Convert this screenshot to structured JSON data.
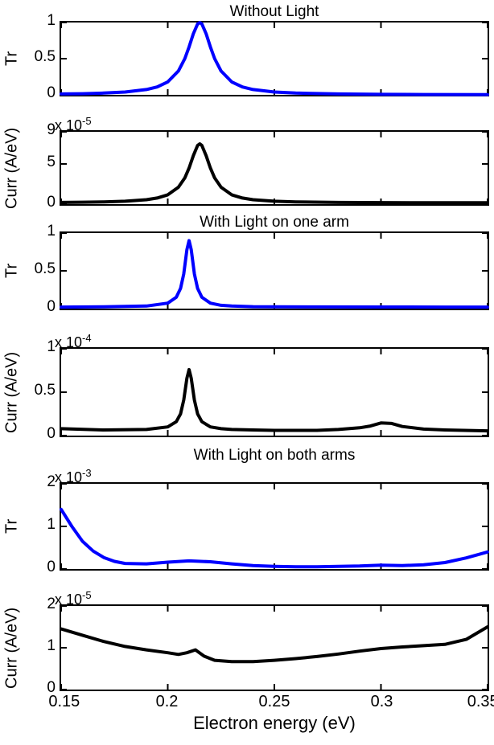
{
  "figure": {
    "xlabel": "Electron energy (eV)",
    "x_range": [
      0.15,
      0.35
    ],
    "x_ticks": [
      0.15,
      0.2,
      0.25,
      0.3,
      0.35
    ],
    "x_tick_labels": [
      "0.15",
      "0.2",
      "0.25",
      "0.3",
      "0.35"
    ],
    "line_color_tr": "#0000ff",
    "line_color_curr": "#000000"
  },
  "chart_data": [
    {
      "type": "line",
      "title": "Without Light",
      "ylabel": "Tr",
      "color": "#0000ff",
      "ylim": [
        0,
        1
      ],
      "ytick_values": [
        0,
        0.5,
        1
      ],
      "ytick_labels": [
        "0",
        "0.5",
        "1"
      ],
      "x": [
        0.15,
        0.16,
        0.17,
        0.18,
        0.19,
        0.195,
        0.2,
        0.205,
        0.208,
        0.21,
        0.212,
        0.214,
        0.215,
        0.216,
        0.218,
        0.22,
        0.222,
        0.225,
        0.23,
        0.235,
        0.24,
        0.25,
        0.26,
        0.28,
        0.3,
        0.32,
        0.35
      ],
      "y": [
        0.012,
        0.016,
        0.024,
        0.039,
        0.073,
        0.109,
        0.179,
        0.329,
        0.5,
        0.662,
        0.845,
        0.98,
        1.0,
        0.98,
        0.845,
        0.662,
        0.5,
        0.329,
        0.179,
        0.109,
        0.073,
        0.039,
        0.024,
        0.012,
        0.007,
        0.004,
        0.003
      ]
    },
    {
      "type": "line",
      "title": "",
      "ylabel": "Curr (A/eV)",
      "color": "#000000",
      "exponent": {
        "base": "x 10",
        "power": "-5"
      },
      "ylim": [
        0,
        9
      ],
      "ytick_values": [
        0,
        5,
        9
      ],
      "ytick_labels": [
        "0",
        "5",
        "9"
      ],
      "x": [
        0.15,
        0.16,
        0.17,
        0.18,
        0.19,
        0.195,
        0.2,
        0.205,
        0.208,
        0.21,
        0.212,
        0.214,
        0.215,
        0.216,
        0.218,
        0.22,
        0.222,
        0.225,
        0.23,
        0.235,
        0.24,
        0.25,
        0.26,
        0.28,
        0.3,
        0.32,
        0.35
      ],
      "y": [
        0.21,
        0.24,
        0.28,
        0.36,
        0.55,
        0.76,
        1.16,
        2.1,
        3.26,
        4.49,
        6.03,
        7.3,
        7.5,
        7.3,
        6.03,
        4.49,
        3.26,
        2.1,
        1.16,
        0.76,
        0.55,
        0.36,
        0.28,
        0.21,
        0.19,
        0.17,
        0.165
      ]
    },
    {
      "type": "line",
      "title": "With Light on one arm",
      "ylabel": "Tr",
      "color": "#0000ff",
      "ylim": [
        0,
        1
      ],
      "ytick_values": [
        0,
        0.5,
        1
      ],
      "ytick_labels": [
        "0",
        "0.5",
        "1"
      ],
      "x": [
        0.15,
        0.17,
        0.19,
        0.2,
        0.204,
        0.206,
        0.2075,
        0.209,
        0.21,
        0.211,
        0.2125,
        0.214,
        0.216,
        0.22,
        0.225,
        0.23,
        0.24,
        0.25,
        0.27,
        0.3,
        0.33,
        0.35
      ],
      "y": [
        0.02,
        0.023,
        0.034,
        0.072,
        0.15,
        0.267,
        0.46,
        0.78,
        0.9,
        0.78,
        0.46,
        0.267,
        0.15,
        0.072,
        0.044,
        0.034,
        0.026,
        0.023,
        0.022,
        0.021,
        0.02,
        0.02
      ]
    },
    {
      "type": "line",
      "title": "",
      "ylabel": "Curr (A/eV)",
      "color": "#000000",
      "exponent": {
        "base": "x 10",
        "power": "-4"
      },
      "ylim": [
        0,
        1
      ],
      "ytick_values": [
        0,
        0.5,
        1
      ],
      "ytick_labels": [
        "0",
        "0.5",
        "1"
      ],
      "x": [
        0.15,
        0.17,
        0.19,
        0.2,
        0.204,
        0.206,
        0.2075,
        0.209,
        0.21,
        0.211,
        0.2125,
        0.214,
        0.216,
        0.22,
        0.225,
        0.23,
        0.24,
        0.25,
        0.26,
        0.27,
        0.28,
        0.29,
        0.295,
        0.3,
        0.305,
        0.31,
        0.32,
        0.33,
        0.35
      ],
      "y": [
        0.08,
        0.065,
        0.07,
        0.1,
        0.16,
        0.25,
        0.41,
        0.66,
        0.76,
        0.66,
        0.41,
        0.25,
        0.16,
        0.1,
        0.08,
        0.07,
        0.065,
        0.06,
        0.06,
        0.06,
        0.07,
        0.09,
        0.11,
        0.145,
        0.14,
        0.105,
        0.075,
        0.065,
        0.055
      ]
    },
    {
      "type": "line",
      "title": "With Light on both arms",
      "ylabel": "Tr",
      "color": "#0000ff",
      "exponent": {
        "base": "x 10",
        "power": "-3"
      },
      "ylim": [
        0,
        2
      ],
      "ytick_values": [
        0,
        1,
        2
      ],
      "ytick_labels": [
        "0",
        "1",
        "2"
      ],
      "x": [
        0.15,
        0.155,
        0.16,
        0.165,
        0.17,
        0.175,
        0.18,
        0.19,
        0.2,
        0.21,
        0.22,
        0.23,
        0.24,
        0.25,
        0.26,
        0.27,
        0.28,
        0.29,
        0.3,
        0.31,
        0.32,
        0.33,
        0.34,
        0.35
      ],
      "y": [
        1.4,
        1.0,
        0.65,
        0.42,
        0.27,
        0.18,
        0.13,
        0.12,
        0.16,
        0.19,
        0.17,
        0.12,
        0.08,
        0.06,
        0.05,
        0.05,
        0.06,
        0.07,
        0.09,
        0.08,
        0.1,
        0.15,
        0.26,
        0.4
      ]
    },
    {
      "type": "line",
      "title": "",
      "ylabel": "Curr (A/eV)",
      "color": "#000000",
      "exponent": {
        "base": "x 10",
        "power": "-5"
      },
      "ylim": [
        0,
        2
      ],
      "ytick_values": [
        0,
        1,
        2
      ],
      "ytick_labels": [
        "0",
        "1",
        "2"
      ],
      "x": [
        0.15,
        0.16,
        0.17,
        0.18,
        0.19,
        0.2,
        0.205,
        0.209,
        0.213,
        0.217,
        0.222,
        0.23,
        0.24,
        0.25,
        0.26,
        0.27,
        0.28,
        0.29,
        0.3,
        0.31,
        0.32,
        0.33,
        0.34,
        0.35
      ],
      "y": [
        1.45,
        1.3,
        1.15,
        1.03,
        0.95,
        0.88,
        0.84,
        0.88,
        0.95,
        0.8,
        0.7,
        0.67,
        0.67,
        0.7,
        0.74,
        0.79,
        0.85,
        0.92,
        0.98,
        1.02,
        1.05,
        1.08,
        1.2,
        1.5
      ]
    }
  ]
}
